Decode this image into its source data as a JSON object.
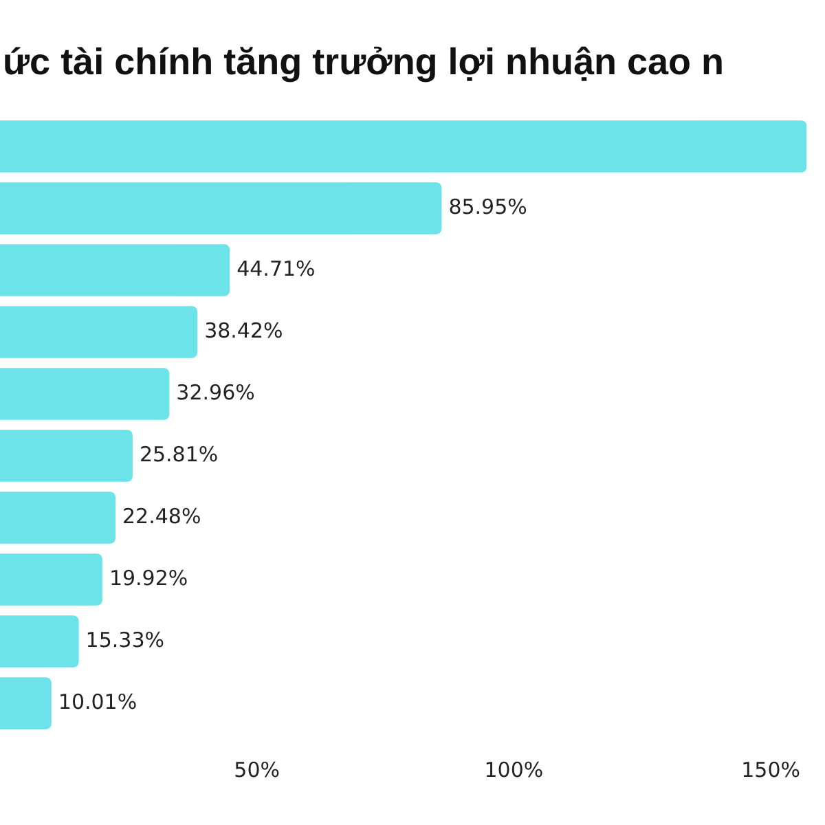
{
  "chart_data": {
    "type": "bar",
    "orientation": "horizontal",
    "title": "ức tài chính tăng trưởng lợi nhuận cao n",
    "categories": [
      null,
      null,
      null,
      null,
      null,
      null,
      null,
      null,
      null,
      null
    ],
    "values": [
      157,
      85.95,
      44.71,
      38.42,
      32.96,
      25.81,
      22.48,
      19.92,
      15.33,
      10.01
    ],
    "value_labels": [
      null,
      "85.95%",
      "44.71%",
      "38.42%",
      "32.96%",
      "25.81%",
      "22.48%",
      "19.92%",
      "15.33%",
      "10.01%"
    ],
    "color": "#6ce3e8",
    "xlim": [
      0,
      157
    ],
    "xticks": [
      {
        "value": 50,
        "label": "50%"
      },
      {
        "value": 100,
        "label": "100%"
      },
      {
        "value": 150,
        "label": "150%"
      }
    ],
    "grid": false,
    "legend": false
  }
}
